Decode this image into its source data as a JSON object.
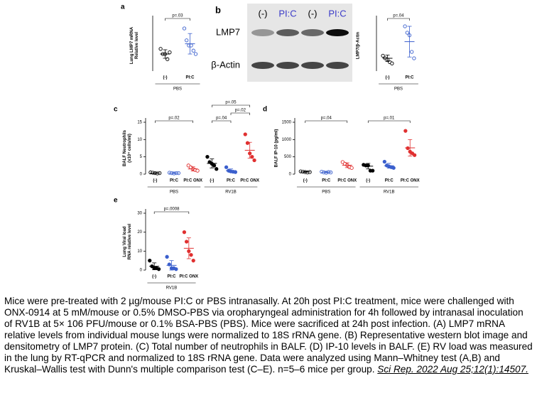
{
  "chart_data": [
    {
      "type": "scatter",
      "panel": "a",
      "ylabel": [
        "Lung LMP7 mRNA",
        "Relative level"
      ],
      "ylim": [
        0,
        3
      ],
      "groups": [
        {
          "name": "PBS",
          "items": [
            {
              "category": "(-)",
              "color": "#000000",
              "filled": false,
              "values": [
                1.3,
                1.0,
                1.0,
                0.7,
                1.1
              ],
              "mean": 1.0,
              "sd": 0.25
            },
            {
              "category": "PI:C",
              "color": "#3a5fcd",
              "filled": false,
              "values": [
                2.5,
                1.8,
                1.5,
                1.5,
                1.2,
                1.0
              ],
              "mean": 1.6,
              "sd": 0.6
            }
          ]
        }
      ],
      "comparisons": [
        {
          "label": "p=.03",
          "between": [
            0,
            1
          ]
        }
      ]
    },
    {
      "type": "scatter",
      "panel": "",
      "ylabel": [
        "LMP7/β-Actin"
      ],
      "ylim": [
        0,
        4
      ],
      "groups": [
        {
          "name": "PBS",
          "items": [
            {
              "category": "(-)",
              "color": "#000000",
              "filled": false,
              "values": [
                1.2,
                1.0,
                0.9,
                0.7,
                0.6
              ],
              "mean": 1.0,
              "sd": 0.25
            },
            {
              "category": "PI:C",
              "color": "#3a5fcd",
              "filled": false,
              "values": [
                3.5,
                3.0,
                2.8,
                1.5,
                1.0
              ],
              "mean": 2.3,
              "sd": 1.2
            }
          ]
        }
      ],
      "comparisons": [
        {
          "label": "p=.04",
          "between": [
            0,
            1
          ]
        }
      ]
    },
    {
      "type": "scatter",
      "panel": "c",
      "ylabel": [
        "BALF Neutrophils",
        "(x10⁴ cells/ml)"
      ],
      "ylim": [
        0,
        15
      ],
      "yticks": [
        0,
        5,
        10,
        15
      ],
      "groups": [
        {
          "name": "PBS",
          "items": [
            {
              "category": "(-)",
              "color": "#000000",
              "filled": false,
              "values": [
                0.5,
                0.4,
                0.3,
                0.2,
                0.3
              ],
              "mean": 0.3,
              "sd": 0.1
            },
            {
              "category": "PI:C",
              "color": "#3a5fcd",
              "filled": false,
              "values": [
                0.4,
                0.3,
                0.2,
                0.3,
                0.3
              ],
              "mean": 0.3,
              "sd": 0.1
            },
            {
              "category": "PI:C ONX",
              "color": "#e03030",
              "filled": false,
              "values": [
                2.5,
                2.0,
                1.5,
                1.2,
                1.0
              ],
              "mean": 1.5,
              "sd": 0.6
            }
          ]
        },
        {
          "name": "RV1B",
          "items": [
            {
              "category": "(-)",
              "color": "#000000",
              "filled": true,
              "values": [
                5.0,
                3.5,
                3.0,
                2.5,
                1.5
              ],
              "mean": 3.1,
              "sd": 1.3
            },
            {
              "category": "PI:C",
              "color": "#3a5fcd",
              "filled": true,
              "values": [
                2.0,
                1.0,
                0.8,
                0.7,
                0.6
              ],
              "mean": 1.0,
              "sd": 0.5
            },
            {
              "category": "PI:C ONX",
              "color": "#e03030",
              "filled": true,
              "values": [
                11.5,
                9.0,
                6.0,
                5.0,
                4.0
              ],
              "mean": 6.9,
              "sd": 2.3
            }
          ]
        }
      ],
      "comparisons": [
        {
          "label": "p=.02",
          "between": [
            0,
            2
          ]
        },
        {
          "label": "p=.04",
          "between": [
            3,
            4
          ]
        },
        {
          "label": "p=.02",
          "between": [
            4,
            5
          ]
        },
        {
          "label": "p=.05",
          "between": [
            3,
            5
          ]
        }
      ]
    },
    {
      "type": "scatter",
      "panel": "d",
      "ylabel": [
        "BALF IP-10 (pg/ml)"
      ],
      "ylim": [
        0,
        1500
      ],
      "yticks": [
        0,
        500,
        1000,
        1500
      ],
      "groups": [
        {
          "name": "PBS",
          "items": [
            {
              "category": "(-)",
              "color": "#000000",
              "filled": false,
              "values": [
                80,
                70,
                60,
                50,
                60
              ],
              "mean": 64,
              "sd": 12
            },
            {
              "category": "PI:C",
              "color": "#3a5fcd",
              "filled": false,
              "values": [
                70,
                50,
                40,
                60,
                50
              ],
              "mean": 54,
              "sd": 12
            },
            {
              "category": "PI:C ONX",
              "color": "#e03030",
              "filled": false,
              "values": [
                350,
                300,
                260,
                200,
                180
              ],
              "mean": 258,
              "sd": 70
            }
          ]
        },
        {
          "name": "RV1B",
          "items": [
            {
              "category": "(-)",
              "color": "#000000",
              "filled": true,
              "values": [
                270,
                250,
                250,
                100,
                100
              ],
              "mean": 230,
              "sd": 80
            },
            {
              "category": "PI:C",
              "color": "#3a5fcd",
              "filled": true,
              "values": [
                360,
                250,
                220,
                200,
                180
              ],
              "mean": 242,
              "sd": 70
            },
            {
              "category": "PI:C ONX",
              "color": "#e03030",
              "filled": true,
              "values": [
                1250,
                750,
                650,
                600,
                550
              ],
              "mean": 760,
              "sd": 240
            }
          ]
        }
      ],
      "comparisons": [
        {
          "label": "p=.04",
          "between": [
            0,
            2
          ]
        },
        {
          "label": "p=.01",
          "between": [
            3,
            5
          ]
        }
      ]
    },
    {
      "type": "scatter",
      "panel": "e",
      "ylabel": [
        "Lung Viral load",
        "RNA relative level"
      ],
      "ylim": [
        0,
        30
      ],
      "yticks": [
        0,
        10,
        20,
        30
      ],
      "groups": [
        {
          "name": "RV1B",
          "items": [
            {
              "category": "(-)",
              "color": "#000000",
              "filled": true,
              "values": [
                5,
                2,
                1,
                1,
                0.5
              ],
              "mean": 2,
              "sd": 1.8
            },
            {
              "category": "PI:C",
              "color": "#3a5fcd",
              "filled": true,
              "values": [
                7,
                3,
                1,
                1,
                0.5
              ],
              "mean": 2.5,
              "sd": 2.5
            },
            {
              "category": "PI:C ONX",
              "color": "#e03030",
              "filled": true,
              "values": [
                20,
                15,
                10,
                8,
                5
              ],
              "mean": 11.5,
              "sd": 5.5
            }
          ]
        }
      ],
      "comparisons": [
        {
          "label": "p=.0008",
          "between": [
            0,
            2
          ]
        }
      ]
    }
  ],
  "blot": {
    "panel": "b",
    "lanes": [
      "(-)",
      "PI:C",
      "(-)",
      "PI:C"
    ],
    "rows": [
      "LMP7",
      "β-Actin"
    ]
  },
  "caption": "Mice were pre-treated with 2 µg/mouse PI:C or PBS intranasally. At 20h post PI:C treatment, mice were challenged with ONX-0914 at 5 mM/mouse or 0.5% DMSO-PBS via oropharyngeal administration for 4h followed by intranasal inoculation of RV1B at 5× 106 PFU/mouse or 0.1% BSA-PBS (PBS). Mice were sacrificed at 24h post infection. (A) LMP7 mRNA relative levels from individual mouse lungs were normalized to 18S rRNA gene. (B) Representative western blot image and densitometry of LMP7 protein. (C) Total number of neutrophils in BALF. (D) IP-10 levels in BALF. (E) RV load was measured in the lung by RT-qPCR and normalized to 18S rRNA gene. Data were analyzed using Mann–Whitney test (A,B) and Kruskal–Wallis test with Dunn's multiple comparison test (C–E). n=5–6 mice per group.",
  "citation": "Sci Rep. 2022 Aug 25;12(1):14507."
}
